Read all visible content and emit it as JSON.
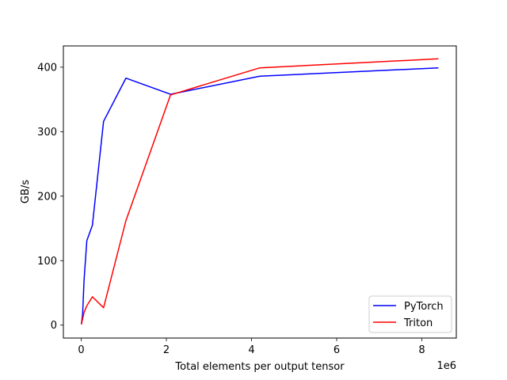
{
  "chart_data": {
    "type": "line",
    "title": "",
    "xlabel": "Total elements per output tensor",
    "ylabel": "GB/s",
    "x_offset_label": "1e6",
    "xlim": [
      -0.42,
      8.81
    ],
    "ylim": [
      -20,
      433
    ],
    "x_ticks": [
      0,
      2,
      4,
      6,
      8
    ],
    "x_tick_labels": [
      "0",
      "2",
      "4",
      "6",
      "8"
    ],
    "y_ticks": [
      0,
      100,
      200,
      300,
      400
    ],
    "y_tick_labels": [
      "0",
      "100",
      "200",
      "300",
      "400"
    ],
    "grid": false,
    "legend_position": "lower-right",
    "series": [
      {
        "name": "PyTorch",
        "color": "#0000ff",
        "x": [
          0.004,
          0.008,
          0.016,
          0.033,
          0.066,
          0.131,
          0.262,
          0.524,
          1.049,
          2.097,
          4.194,
          8.389
        ],
        "y": [
          2,
          4,
          8,
          18,
          70,
          131,
          155,
          316,
          383,
          358,
          386,
          399
        ]
      },
      {
        "name": "Triton",
        "color": "#ff0000",
        "x": [
          0.004,
          0.008,
          0.016,
          0.033,
          0.066,
          0.131,
          0.262,
          0.524,
          1.049,
          2.097,
          4.194,
          8.389
        ],
        "y": [
          1,
          2,
          5,
          10,
          20,
          30,
          44,
          27,
          162,
          357,
          399,
          413
        ]
      }
    ]
  }
}
